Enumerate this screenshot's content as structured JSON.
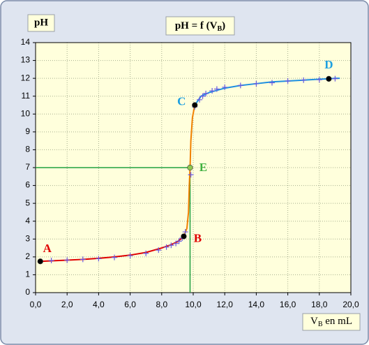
{
  "chart_data": {
    "type": "titration",
    "title": {
      "text": "pH = f (V",
      "subscript": "B",
      "suffix": ")"
    },
    "y_label": "pH",
    "x_label": {
      "text": "V",
      "subscript": "B",
      "suffix": " en mL"
    },
    "xlim": [
      0,
      20
    ],
    "ylim": [
      0,
      14
    ],
    "xticks": [
      {
        "value": 0,
        "label": "0,0"
      },
      {
        "value": 2,
        "label": "2,0"
      },
      {
        "value": 4,
        "label": "4,0"
      },
      {
        "value": 6,
        "label": "6,0"
      },
      {
        "value": 8,
        "label": "8,0"
      },
      {
        "value": 10,
        "label": "10,0"
      },
      {
        "value": 12,
        "label": "12,0"
      },
      {
        "value": 14,
        "label": "14,0"
      },
      {
        "value": 16,
        "label": "16,0"
      },
      {
        "value": 18,
        "label": "18,0"
      },
      {
        "value": 20,
        "label": "20,0"
      }
    ],
    "yticks": [
      0,
      1,
      2,
      3,
      4,
      5,
      6,
      7,
      8,
      9,
      10,
      11,
      12,
      13,
      14
    ],
    "grid": true,
    "curves": [
      {
        "color": "#e00000",
        "x": [
          0.3,
          1,
          2,
          3,
          4,
          5,
          6,
          7,
          8,
          8.5,
          9,
          9.4
        ],
        "y": [
          1.75,
          1.78,
          1.82,
          1.86,
          1.92,
          2.0,
          2.1,
          2.25,
          2.5,
          2.65,
          2.85,
          3.15
        ]
      },
      {
        "color": "#f08000",
        "x": [
          9.4,
          9.6,
          9.7,
          9.75,
          9.8,
          9.85,
          9.95,
          10.1
        ],
        "y": [
          3.15,
          3.6,
          4.5,
          6.0,
          7.0,
          8.5,
          9.8,
          10.5
        ]
      },
      {
        "color": "#1e90e0",
        "x": [
          10.1,
          10.5,
          11,
          12,
          13,
          14,
          15,
          16,
          17,
          18,
          18.6,
          19,
          19.3
        ],
        "y": [
          10.5,
          11.0,
          11.2,
          11.45,
          11.6,
          11.7,
          11.8,
          11.85,
          11.9,
          11.95,
          11.97,
          12.0,
          12.0
        ]
      }
    ],
    "measurements": {
      "color": "#6a5ae0",
      "x": [
        1,
        2,
        3,
        4,
        5,
        6,
        7,
        7.8,
        8.3,
        8.6,
        8.9,
        9.1,
        9.3,
        9.5,
        9.85,
        10.1,
        10.4,
        10.6,
        10.8,
        11.2,
        11.5,
        12,
        13,
        14,
        15,
        16,
        17,
        18,
        19
      ],
      "y": [
        1.8,
        1.82,
        1.86,
        1.9,
        1.97,
        2.07,
        2.2,
        2.38,
        2.55,
        2.65,
        2.75,
        2.88,
        3.05,
        3.4,
        6.6,
        10.4,
        10.8,
        11.0,
        11.15,
        11.3,
        11.4,
        11.5,
        11.6,
        11.7,
        11.75,
        11.85,
        11.9,
        11.92,
        11.98
      ]
    },
    "points": [
      {
        "label": "A",
        "x": 0.3,
        "y": 1.75,
        "color": "#e00000",
        "dot_color": "#000000"
      },
      {
        "label": "B",
        "x": 9.4,
        "y": 3.15,
        "color": "#e00000",
        "dot_color": "#000000"
      },
      {
        "label": "C",
        "x": 10.1,
        "y": 10.5,
        "color": "#1ea0e0",
        "dot_color": "#000000"
      },
      {
        "label": "D",
        "x": 18.6,
        "y": 11.97,
        "color": "#1ea0e0",
        "dot_color": "#000000"
      },
      {
        "label": "E",
        "x": 9.8,
        "y": 7.0,
        "color": "#40b040",
        "dot_color": "#90c850"
      }
    ],
    "guide_point": 4,
    "guide_color": "#20a040"
  }
}
